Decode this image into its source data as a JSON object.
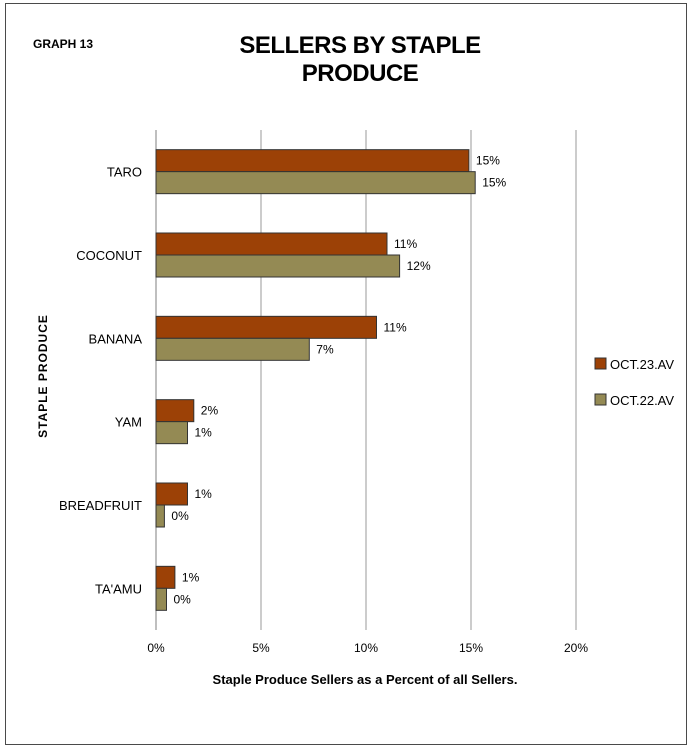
{
  "graph_label": "GRAPH 13",
  "chart_data": {
    "type": "bar",
    "orientation": "horizontal",
    "title": "SELLERS BY STAPLE PRODUCE",
    "xlabel": "Staple Produce Sellers as a Percent of all Sellers.",
    "ylabel": "STAPLE PRODUCE",
    "xlim": [
      0,
      20
    ],
    "xticks": [
      0,
      5,
      10,
      15,
      20
    ],
    "xtick_labels": [
      "0%",
      "5%",
      "10%",
      "15%",
      "20%"
    ],
    "categories": [
      "TARO",
      "COCONUT",
      "BANANA",
      "YAM",
      "BREADFRUIT",
      "TA'AMU"
    ],
    "series": [
      {
        "name": "OCT.23.AV",
        "color": "#9c4106",
        "values": [
          14.9,
          11.0,
          10.5,
          1.8,
          1.5,
          0.9
        ],
        "labels": [
          "15%",
          "11%",
          "11%",
          "2%",
          "1%",
          "1%"
        ]
      },
      {
        "name": "OCT.22.AV",
        "color": "#948a54",
        "values": [
          15.2,
          11.6,
          7.3,
          1.5,
          0.4,
          0.5
        ],
        "labels": [
          "15%",
          "12%",
          "7%",
          "1%",
          "0%",
          "0%"
        ]
      }
    ],
    "grid": true,
    "legend": "right"
  }
}
